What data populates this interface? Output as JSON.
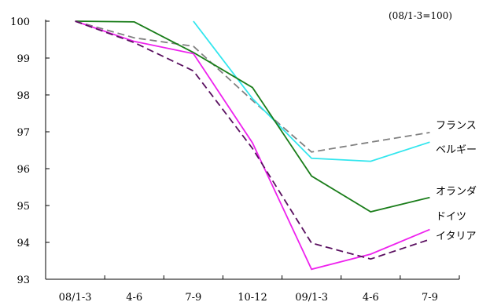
{
  "chart_data": {
    "type": "line",
    "note": "(08/1-3=100)",
    "categories": [
      "08/1-3",
      "4-6",
      "7-9",
      "10-12",
      "09/1-3",
      "4-6",
      "7-9"
    ],
    "ylim": [
      93,
      100
    ],
    "yticks": [
      "100",
      "99",
      "98",
      "97",
      "96",
      "95",
      "94",
      "93"
    ],
    "grid": false,
    "legend": "right (direct line labels)",
    "series": [
      {
        "name": "フランス",
        "color": "#808080",
        "dash": true,
        "values": [
          100,
          99.55,
          99.32,
          97.85,
          96.45,
          96.72,
          96.98
        ]
      },
      {
        "name": "ベルギー",
        "color": "#33e6ee",
        "dash": false,
        "values": [
          null,
          null,
          100.0,
          97.9,
          96.28,
          96.2,
          96.72
        ]
      },
      {
        "name": "オランダ",
        "color": "#1a7d1a",
        "dash": false,
        "values": [
          100,
          99.98,
          99.15,
          98.2,
          95.8,
          94.83,
          95.22
        ]
      },
      {
        "name": "ドイツ",
        "color": "#ee22ee",
        "dash": false,
        "values": [
          100,
          99.45,
          99.12,
          96.7,
          93.27,
          93.68,
          94.35
        ]
      },
      {
        "name": "イタリア",
        "color": "#5a1060",
        "dash": true,
        "values": [
          100,
          99.42,
          98.65,
          96.55,
          93.98,
          93.55,
          94.08
        ]
      }
    ]
  }
}
